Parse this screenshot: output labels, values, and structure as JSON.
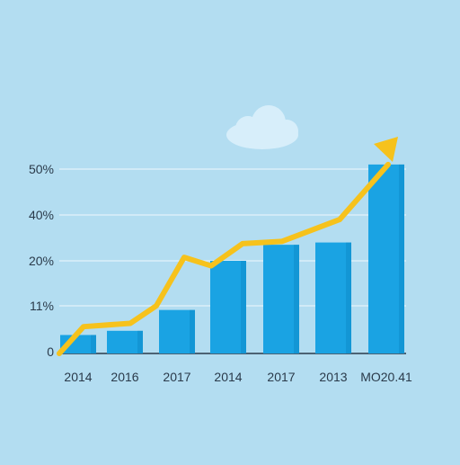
{
  "chart_data": {
    "type": "bar",
    "title": "",
    "xlabel": "",
    "ylabel": "",
    "y_ticks": [
      "0",
      "11%",
      "20%",
      "40%",
      "50%"
    ],
    "categories": [
      "2014",
      "2016",
      "2017",
      "2014",
      "2017",
      "2013",
      "MO20.41"
    ],
    "values": [
      4,
      5,
      10,
      20,
      27,
      28,
      51
    ],
    "trend_line": {
      "points_y": [
        6,
        6.8,
        11,
        21.5,
        19,
        27.5,
        28.5,
        38,
        51
      ]
    },
    "grid": true,
    "legend": "none"
  },
  "colors": {
    "background": "#b3ddf1",
    "bar": "#1aa3e3",
    "bar_shade": "#0f8ccb",
    "trend": "#f6c21c",
    "gridline": "#e3f3fb",
    "axis": "#2a3a4a",
    "cloud": "#d7eefa"
  },
  "decorations": {
    "cloud_icon": "cloud-icon",
    "arrow_icon": "arrow-up-right-icon"
  }
}
